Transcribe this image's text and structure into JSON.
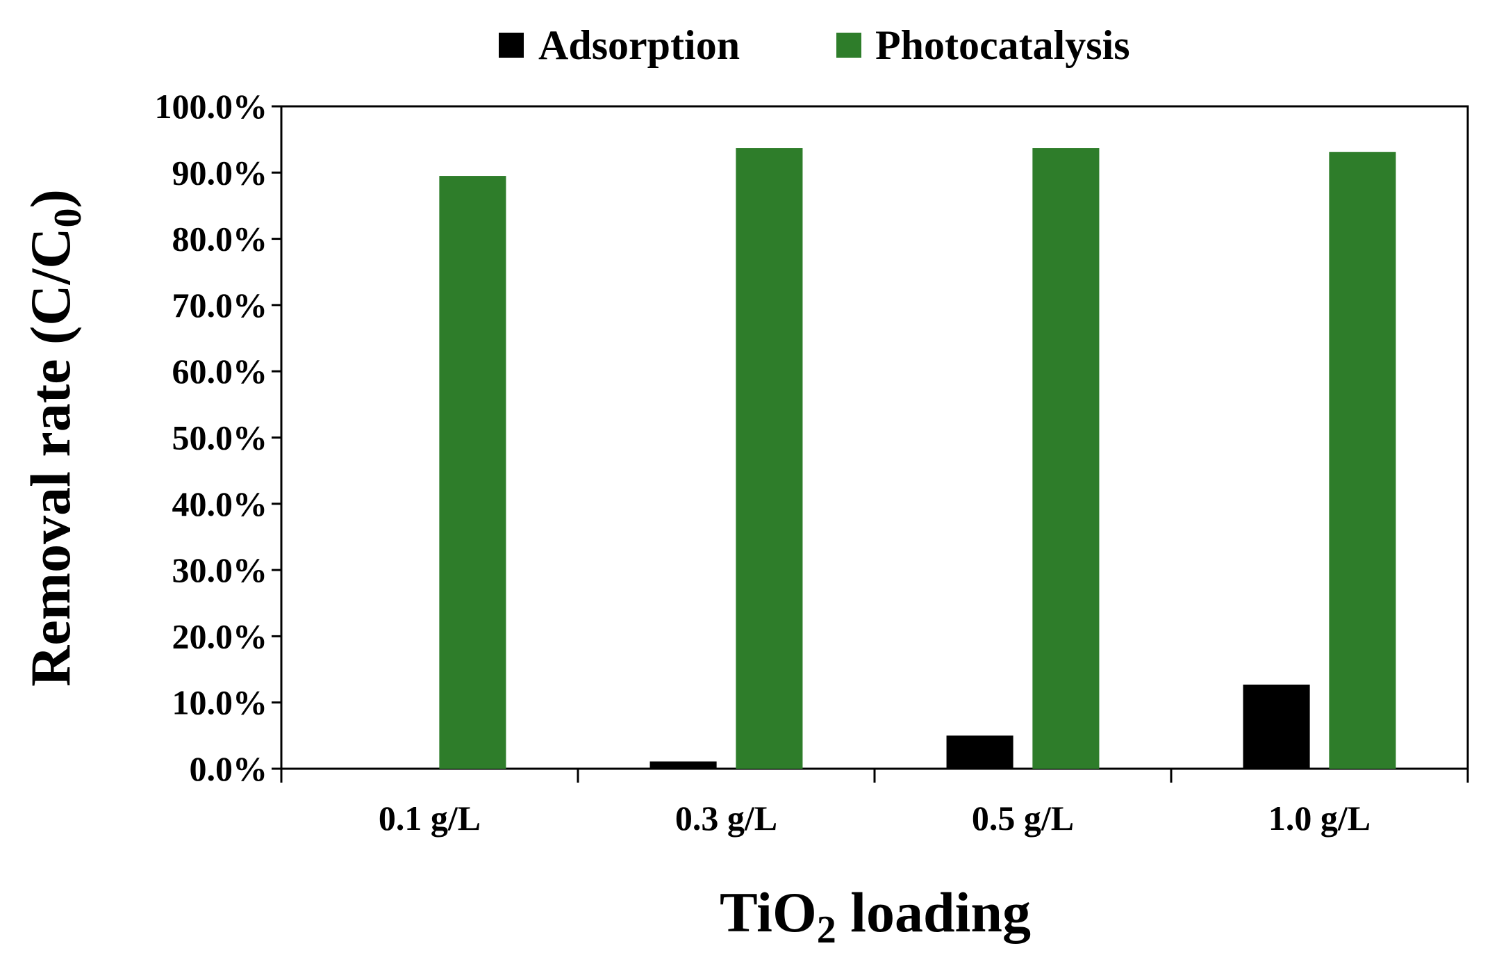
{
  "chart_data": {
    "type": "bar",
    "categories": [
      "0.1 g/L",
      "0.3 g/L",
      "0.5 g/L",
      "1.0 g/L"
    ],
    "series": [
      {
        "name": "Adsorption",
        "color": "#000000",
        "values": [
          0.0,
          1.1,
          5.0,
          12.7
        ]
      },
      {
        "name": "Photocatalysis",
        "color": "#2e7d2a",
        "values": [
          89.5,
          93.7,
          93.7,
          93.1
        ]
      }
    ],
    "xlabel": {
      "main": "TiO",
      "sub": "2",
      "tail": " loading"
    },
    "ylabel": {
      "main": "Removal rate (C/C",
      "sub": "0",
      "tail": ")"
    },
    "ylim": [
      0,
      100
    ],
    "yticks": [
      "0.0%",
      "10.0%",
      "20.0%",
      "30.0%",
      "40.0%",
      "50.0%",
      "60.0%",
      "70.0%",
      "80.0%",
      "90.0%",
      "100.0%"
    ],
    "legend_position": "top-center",
    "grid": false
  }
}
